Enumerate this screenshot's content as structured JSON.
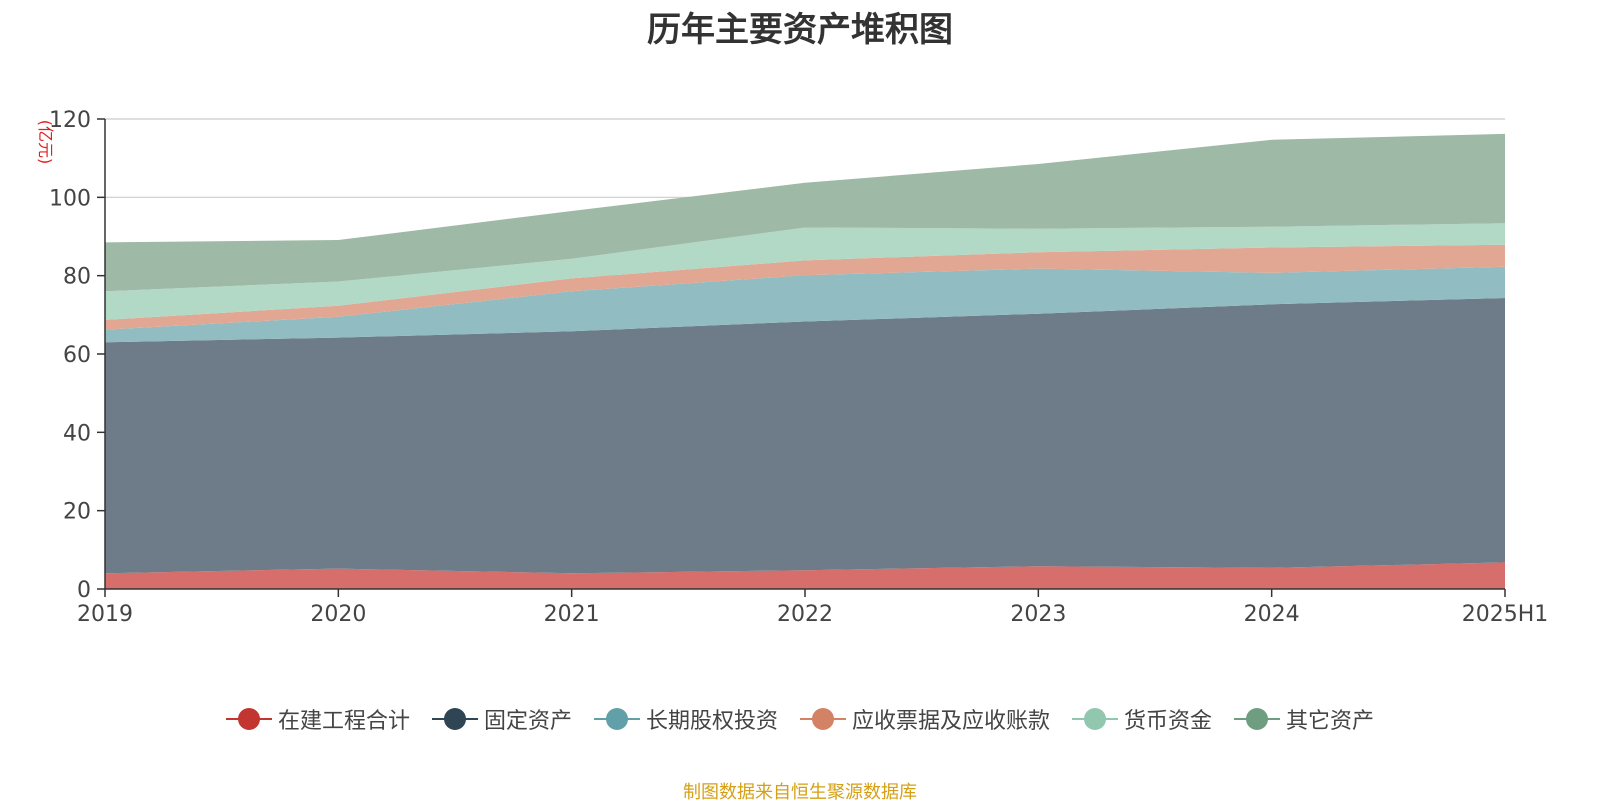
{
  "chart_data": {
    "type": "area",
    "stacked": true,
    "title": "历年主要资产堆积图",
    "y_unit": "(亿元)",
    "categories": [
      "2019",
      "2020",
      "2021",
      "2022",
      "2023",
      "2024",
      "2025H1"
    ],
    "ylim": [
      0,
      120
    ],
    "yticks": [
      0,
      20,
      40,
      60,
      80,
      100,
      120
    ],
    "grid": true,
    "legend_position": "bottom",
    "series": [
      {
        "name": "在建工程合计",
        "color": "#c23531",
        "area_color": "#d66e6c",
        "values": [
          4.0,
          5.2,
          4.0,
          4.8,
          5.8,
          5.4,
          6.8
        ]
      },
      {
        "name": "固定资产",
        "color": "#2f4554",
        "area_color": "#6d7c88",
        "values": [
          59.0,
          59.0,
          61.8,
          63.5,
          64.5,
          67.3,
          67.5
        ]
      },
      {
        "name": "长期股权投资",
        "color": "#61a0a8",
        "area_color": "#90bcc2",
        "values": [
          3.2,
          5.3,
          10.2,
          11.8,
          11.5,
          8.0,
          8.0
        ]
      },
      {
        "name": "应收票据及应收账款",
        "color": "#d48265",
        "area_color": "#e1a793",
        "values": [
          2.5,
          2.8,
          3.3,
          3.8,
          4.2,
          6.5,
          5.6
        ]
      },
      {
        "name": "货币资金",
        "color": "#91c7ae",
        "area_color": "#b2d8c6",
        "values": [
          7.3,
          6.2,
          5.0,
          8.4,
          6.0,
          5.3,
          5.5
        ]
      },
      {
        "name": "其它资产",
        "color": "#6e9e7f",
        "area_color": "#9eb9a5",
        "values": [
          12.5,
          10.6,
          12.2,
          11.4,
          16.5,
          22.2,
          22.8
        ]
      }
    ]
  },
  "footer": {
    "source": "制图数据来自恒生聚源数据库"
  }
}
